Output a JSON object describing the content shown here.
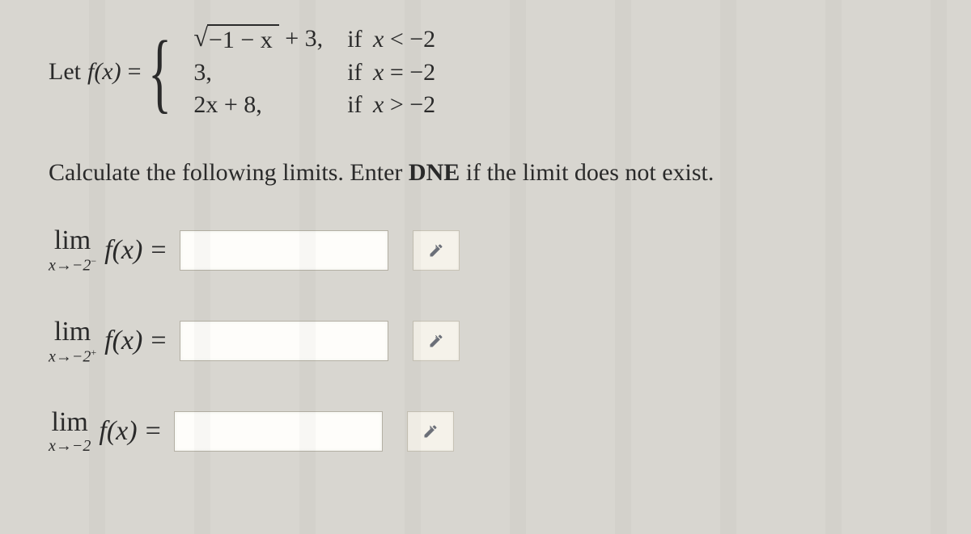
{
  "definition": {
    "prefix": "Let",
    "function": "f(x)",
    "equals": "=",
    "cases": [
      {
        "expr_type": "sqrt_plus",
        "radicand": "−1 − x",
        "tail": " + 3,",
        "cond_if": "if",
        "cond_var": "x",
        "cond_rel": "<",
        "cond_val": "−2"
      },
      {
        "expr_text": "3,",
        "cond_if": "if",
        "cond_var": "x",
        "cond_rel": "=",
        "cond_val": "−2"
      },
      {
        "expr_text": "2x + 8,",
        "cond_if": "if",
        "cond_var": "x",
        "cond_rel": ">",
        "cond_val": "−2"
      }
    ]
  },
  "instruction": {
    "before": "Calculate the following limits. Enter ",
    "bold": "DNE",
    "after": " if the limit does not exist."
  },
  "limits": [
    {
      "lim_label": "lim",
      "sub_var": "x",
      "sub_arrow": "→",
      "sub_target": "−2",
      "sub_sup": "−",
      "body": "f(x)",
      "equals": "=",
      "value": ""
    },
    {
      "lim_label": "lim",
      "sub_var": "x",
      "sub_arrow": "→",
      "sub_target": "−2",
      "sub_sup": "+",
      "body": "f(x)",
      "equals": "=",
      "value": ""
    },
    {
      "lim_label": "lim",
      "sub_var": "x",
      "sub_arrow": "→",
      "sub_target": "−2",
      "sub_sup": "",
      "body": "f(x)",
      "equals": "=",
      "value": ""
    }
  ],
  "colors": {
    "background": "#d8d6d0",
    "text": "#2a2a2a",
    "input_bg": "#fefdfa",
    "input_border": "#b4b0a4",
    "button_bg": "#f5f2ea",
    "button_border": "#c7c2b5",
    "pencil": "#6b6f78",
    "dropdown": "#5a5e68"
  },
  "icons": {
    "pencil": "pencil-icon",
    "dropdown": "chevron-down-icon"
  }
}
